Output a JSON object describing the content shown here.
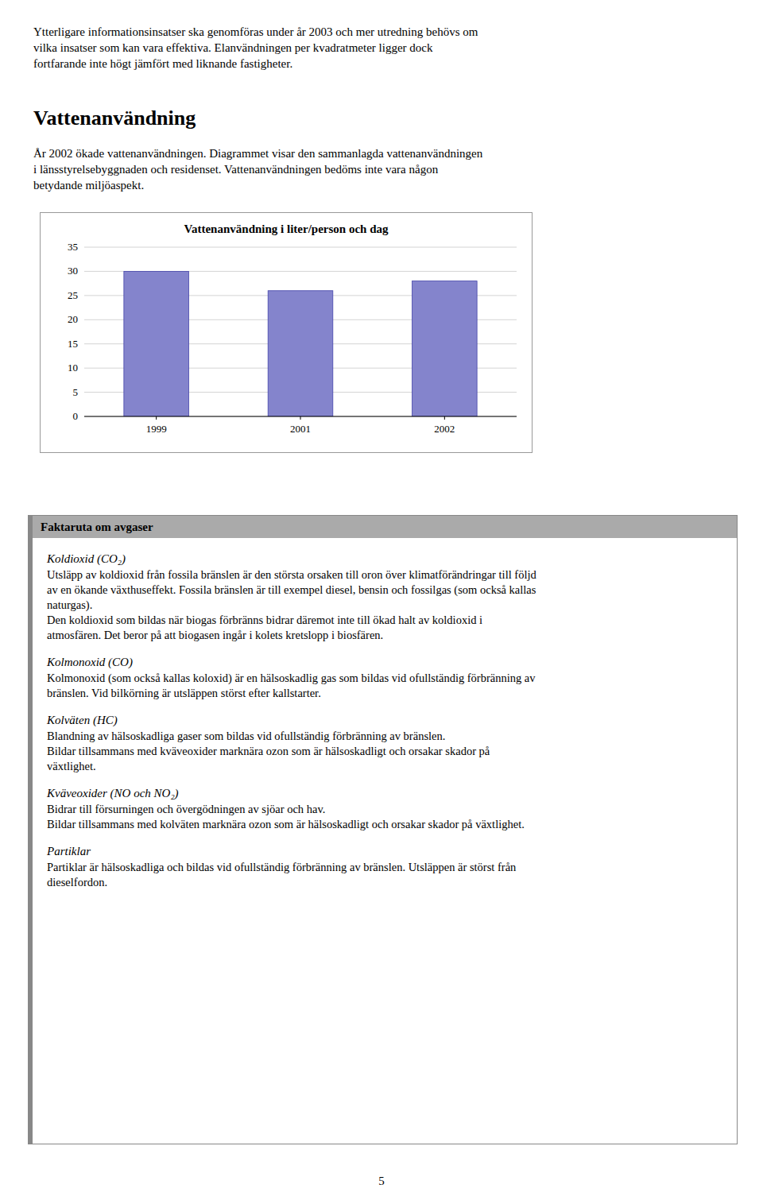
{
  "page": {
    "top_paragraph_lines": [
      "Ytterligare informationsinsatser ska genomföras under år 2003 och mer utredning behövs om",
      "vilka insatser som kan vara effektiva. Elanvändningen per kvadratmeter ligger dock",
      "fortfarande inte högt jämfört med liknande fastigheter."
    ],
    "section_title": "Vattenanvändning",
    "section_body_lines": [
      "År 2002 ökade vattenanvändningen. Diagrammet visar den sammanlagda vattenanvändningen",
      "i länsstyrelsebyggnaden och residenset. Vattenanvändningen bedöms inte vara någon",
      "betydande miljöaspekt."
    ],
    "faktaruta_title": "Faktaruta om avgaser",
    "sections": [
      {
        "heading": "Koldioxid (CO₂)",
        "body_lines": [
          "Utsläpp av koldioxid från fossila bränslen är den största orsaken till oron över klimatförändringar till följd",
          "av en ökande växthuseffekt. Fossila bränslen är till exempel diesel, bensin och fossilgas (som också kallas",
          "naturgas).",
          "Den koldioxid som bildas när biogas förbränns bidrar däremot inte till ökad halt av koldioxid i",
          "atmosfären. Det beror på att biogasen ingår i kolets kretslopp i biosfären."
        ]
      },
      {
        "heading": "Kolmonoxid (CO)",
        "body_lines": [
          "Kolmonoxid (som också kallas koloxid) är en hälsoskadlig gas som bildas vid ofullständig förbränning av",
          "bränslen. Vid bilkörning är utsläppen störst efter kallstarter."
        ]
      },
      {
        "heading": "Kolväten (HC)",
        "body_lines": [
          "Blandning av hälsoskadliga gaser som bildas vid ofullständig förbränning av bränslen.",
          "Bildar tillsammans med kväveoxider marknära ozon som är hälsoskadligt och orsakar skador på",
          "växtlighet."
        ]
      },
      {
        "heading": "Kväveoxider (NO och NO₂)",
        "body_lines": [
          "Bidrar till försurningen och övergödningen av sjöar och hav.",
          "Bildar tillsammans med kolväten marknära ozon som är hälsoskadligt och orsakar skador på växtlighet."
        ]
      },
      {
        "heading": "Partiklar",
        "body_lines": [
          "Partiklar är hälsoskadliga och bildas vid ofullständig förbränning av bränslen. Utsläppen är störst från",
          "dieselfordon."
        ]
      }
    ],
    "page_number": "5"
  },
  "chart_data": {
    "type": "bar",
    "title": "Vattenanvändning i liter/person och dag",
    "categories": [
      "1999",
      "2001",
      "2002"
    ],
    "values": [
      30,
      26,
      28
    ],
    "color": "#8484cc",
    "ylim": [
      0,
      35
    ],
    "yticks": [
      0,
      5,
      10,
      15,
      20,
      25,
      30,
      35
    ],
    "grid": true
  }
}
